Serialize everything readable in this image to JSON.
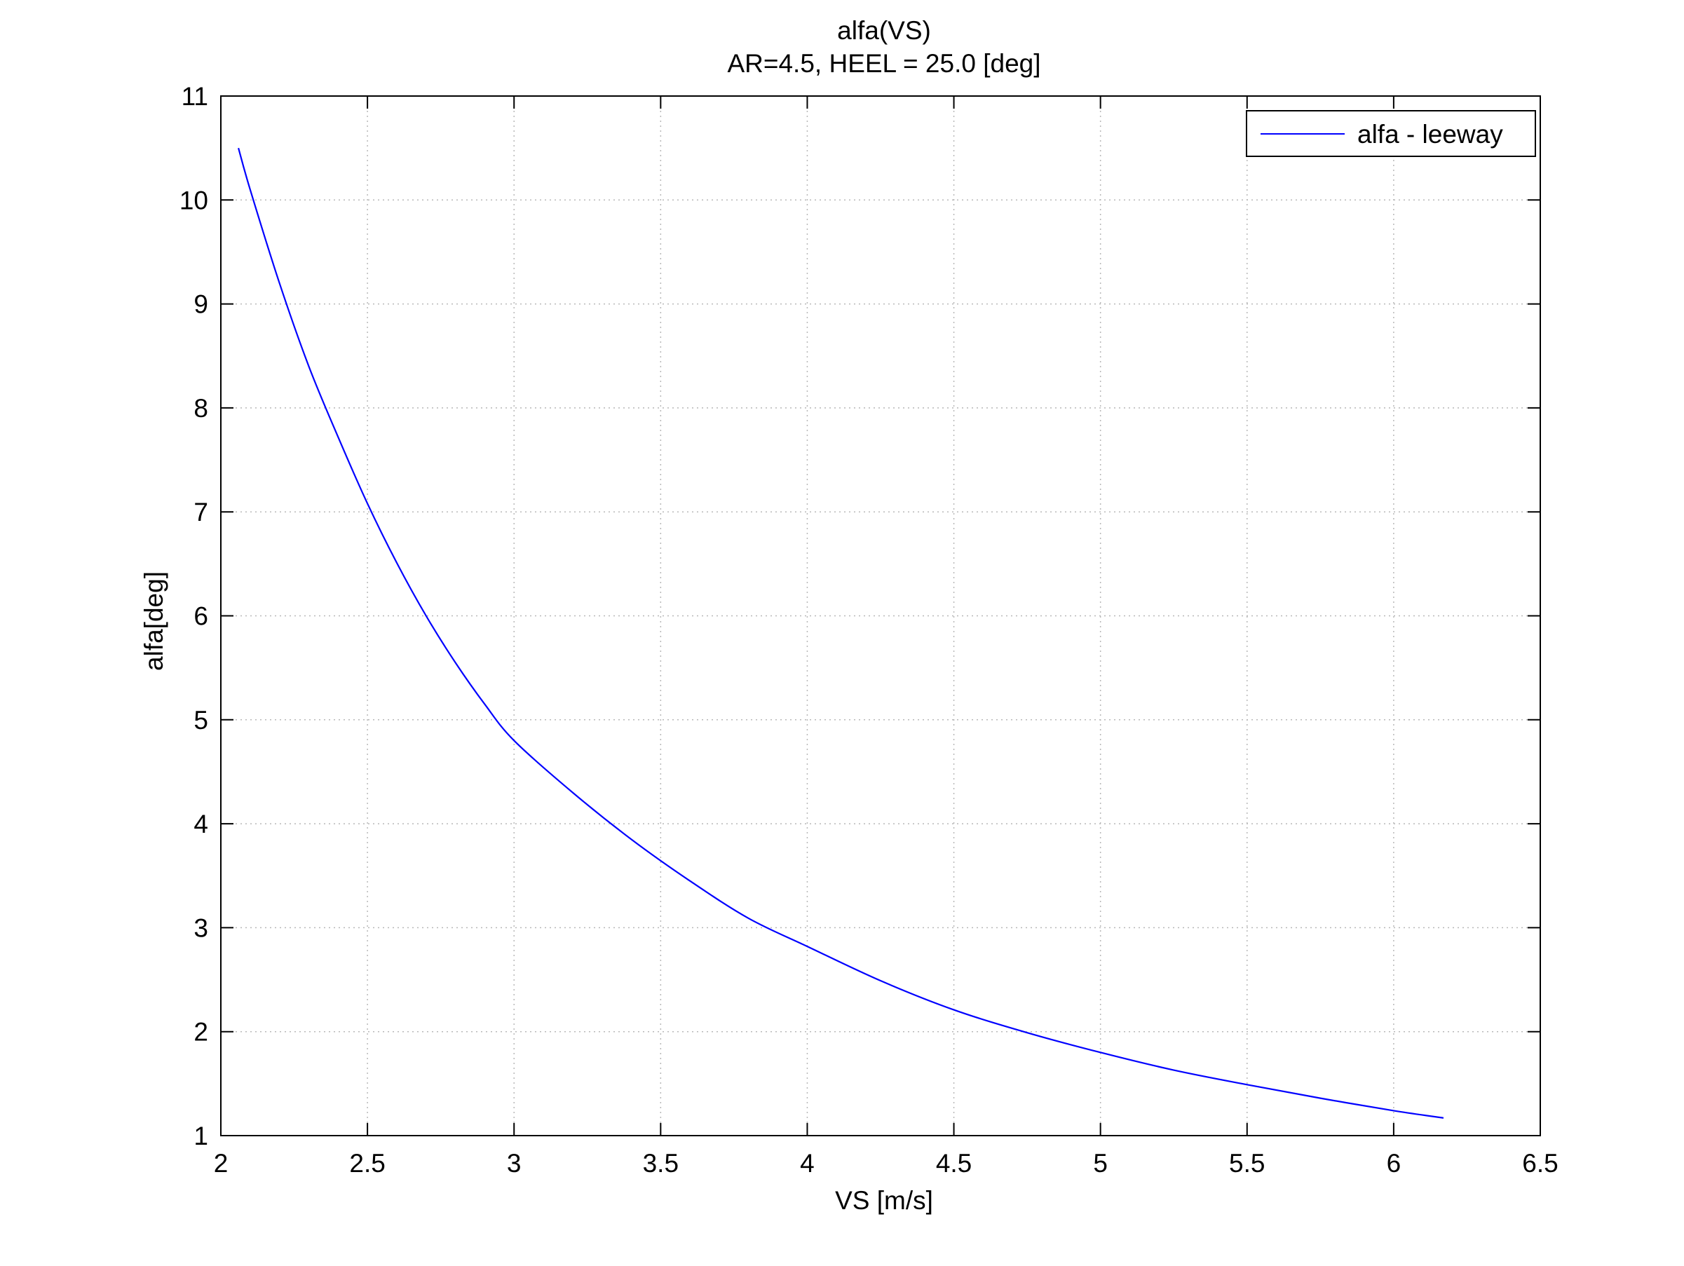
{
  "chart_data": {
    "type": "line",
    "title": "alfa(VS)",
    "subtitle": "AR=4.5, HEEL = 25.0 [deg]",
    "xlabel": "VS [m/s]",
    "ylabel": "alfa[deg]",
    "xlim": [
      2,
      6.5
    ],
    "ylim": [
      1,
      11
    ],
    "xticks": [
      "2",
      "2.5",
      "3",
      "3.5",
      "4",
      "4.5",
      "5",
      "5.5",
      "6",
      "6.5"
    ],
    "yticks": [
      "1",
      "2",
      "3",
      "4",
      "5",
      "6",
      "7",
      "8",
      "9",
      "10",
      "11"
    ],
    "grid": true,
    "legend_position": "top-right",
    "series": [
      {
        "name": "alfa - leeway",
        "color": "#0000ff",
        "x": [
          2.06,
          2.1,
          2.2,
          2.3,
          2.4,
          2.5,
          2.6,
          2.7,
          2.8,
          2.9,
          3.0,
          3.2,
          3.4,
          3.6,
          3.8,
          4.0,
          4.25,
          4.5,
          4.75,
          5.0,
          5.25,
          5.5,
          5.75,
          6.0,
          6.17
        ],
        "y": [
          10.5,
          10.1,
          9.2,
          8.4,
          7.72,
          7.08,
          6.51,
          6.0,
          5.55,
          5.15,
          4.8,
          4.3,
          3.85,
          3.45,
          3.09,
          2.82,
          2.49,
          2.21,
          1.99,
          1.8,
          1.63,
          1.49,
          1.36,
          1.24,
          1.17
        ]
      }
    ]
  }
}
